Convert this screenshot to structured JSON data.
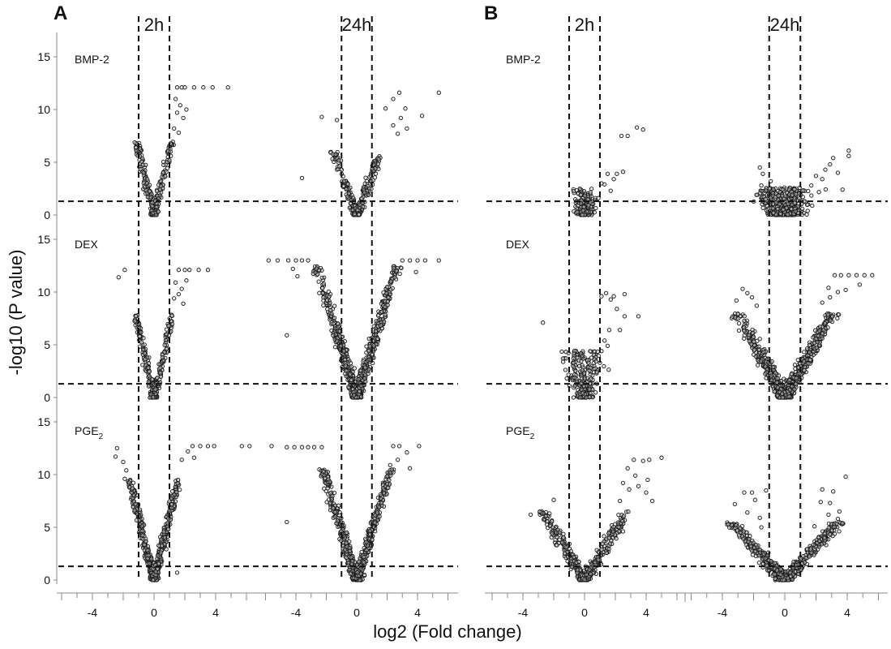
{
  "chart_data": {
    "type": "scatter",
    "xlabel": "log2 (Fold change)",
    "ylabel": "-log10 (P value)",
    "x_ticks": [
      -4,
      0,
      4
    ],
    "y_ticks": [
      0,
      5,
      10,
      15
    ],
    "ylim": [
      0,
      15
    ],
    "fold_change_cutoff": [
      -1,
      1
    ],
    "pvalue_cutoff": 1.3,
    "panels": [
      {
        "letter": "A",
        "times": [
          "2h",
          "24h"
        ],
        "xlim": [
          -6,
          6
        ]
      },
      {
        "letter": "B",
        "times": [
          "2h",
          "24h"
        ],
        "xlim": [
          -6,
          6
        ]
      }
    ],
    "treatments": [
      {
        "label": "BMP-2",
        "sub": ""
      },
      {
        "label": "DEX",
        "sub": ""
      },
      {
        "label": "PGE",
        "sub": "2"
      }
    ],
    "subplots": [
      {
        "panel": "A",
        "time": "2h",
        "treatment": "BMP-2",
        "density": 1.0,
        "ymax_cluster": 7.0,
        "spread": 0.25,
        "slope": 6.0,
        "outliers": [
          [
            1.5,
            12.1
          ],
          [
            1.8,
            12.1
          ],
          [
            2.0,
            12.1
          ],
          [
            2.6,
            12.1
          ],
          [
            3.2,
            12.1
          ],
          [
            3.8,
            12.1
          ],
          [
            4.8,
            12.1
          ],
          [
            1.4,
            11.0
          ],
          [
            1.7,
            10.4
          ],
          [
            2.1,
            10.0
          ],
          [
            1.5,
            9.7
          ],
          [
            1.9,
            9.2
          ],
          [
            1.3,
            8.2
          ],
          [
            1.6,
            7.8
          ]
        ]
      },
      {
        "panel": "A",
        "time": "24h",
        "treatment": "BMP-2",
        "density": 1.0,
        "ymax_cluster": 6.0,
        "spread": 0.45,
        "slope": 3.8,
        "outliers": [
          [
            5.4,
            11.6
          ],
          [
            2.8,
            11.6
          ],
          [
            2.4,
            11.0
          ],
          [
            3.2,
            10.1
          ],
          [
            4.3,
            9.4
          ],
          [
            2.9,
            9.2
          ],
          [
            1.9,
            10.1
          ],
          [
            -1.3,
            9.0
          ],
          [
            -2.3,
            9.3
          ],
          [
            -3.6,
            3.5
          ],
          [
            2.4,
            8.5
          ],
          [
            2.7,
            7.7
          ],
          [
            3.3,
            8.2
          ]
        ]
      },
      {
        "panel": "A",
        "time": "2h",
        "treatment": "DEX",
        "density": 1.0,
        "ymax_cluster": 8.0,
        "spread": 0.25,
        "slope": 6.5,
        "outliers": [
          [
            -2.3,
            11.4
          ],
          [
            -1.9,
            12.1
          ],
          [
            1.6,
            12.1
          ],
          [
            2.0,
            12.1
          ],
          [
            2.3,
            12.1
          ],
          [
            2.9,
            12.1
          ],
          [
            3.5,
            12.1
          ],
          [
            1.4,
            10.9
          ],
          [
            1.8,
            10.3
          ],
          [
            1.6,
            9.8
          ],
          [
            2.1,
            11.1
          ],
          [
            1.3,
            9.4
          ],
          [
            1.9,
            8.9
          ]
        ]
      },
      {
        "panel": "A",
        "time": "24h",
        "treatment": "DEX",
        "density": 2.6,
        "ymax_cluster": 12.5,
        "spread": 0.55,
        "slope": 4.7,
        "outliers": [
          [
            -5.8,
            13.0
          ],
          [
            -5.2,
            13.0
          ],
          [
            -4.5,
            13.0
          ],
          [
            -4.0,
            13.0
          ],
          [
            -3.6,
            13.0
          ],
          [
            -3.2,
            13.0
          ],
          [
            -4.6,
            5.9
          ],
          [
            3.0,
            13.0
          ],
          [
            3.5,
            13.0
          ],
          [
            4.0,
            13.0
          ],
          [
            4.5,
            13.0
          ],
          [
            5.4,
            13.0
          ],
          [
            -4.2,
            12.2
          ],
          [
            -3.9,
            11.5
          ],
          [
            3.9,
            11.9
          ]
        ]
      },
      {
        "panel": "A",
        "time": "2h",
        "treatment": "PGE2",
        "density": 2.1,
        "ymax_cluster": 9.5,
        "spread": 0.3,
        "slope": 6.0,
        "outliers": [
          [
            -2.4,
            12.5
          ],
          [
            -2.5,
            11.7
          ],
          [
            -2.0,
            11.2
          ],
          [
            -1.8,
            10.4
          ],
          [
            -1.9,
            9.6
          ],
          [
            2.5,
            12.7
          ],
          [
            3.0,
            12.7
          ],
          [
            3.5,
            12.7
          ],
          [
            3.9,
            12.7
          ],
          [
            6.2,
            12.7
          ],
          [
            5.7,
            12.7
          ],
          [
            2.2,
            12.2
          ],
          [
            2.6,
            11.6
          ],
          [
            1.8,
            11.4
          ],
          [
            1.5,
            0.7
          ],
          [
            -1.4,
            8.7
          ]
        ]
      },
      {
        "panel": "A",
        "time": "24h",
        "treatment": "PGE2",
        "density": 2.4,
        "ymax_cluster": 10.5,
        "spread": 0.5,
        "slope": 4.7,
        "outliers": [
          [
            -4.6,
            12.6
          ],
          [
            -4.1,
            12.6
          ],
          [
            -3.6,
            12.6
          ],
          [
            -3.2,
            12.6
          ],
          [
            -2.8,
            12.6
          ],
          [
            -2.3,
            12.6
          ],
          [
            -5.6,
            12.7
          ],
          [
            -4.6,
            5.5
          ],
          [
            2.4,
            12.7
          ],
          [
            2.8,
            12.7
          ],
          [
            4.1,
            12.7
          ],
          [
            3.3,
            12.1
          ],
          [
            2.7,
            11.4
          ],
          [
            2.2,
            10.9
          ],
          [
            3.5,
            10.6
          ]
        ]
      },
      {
        "panel": "B",
        "time": "2h",
        "treatment": "BMP-2",
        "density": 0.6,
        "ymax_cluster": 2.5,
        "spread": 0.5,
        "slope": 0,
        "outliers": [
          [
            1.5,
            3.9
          ],
          [
            1.9,
            3.4
          ],
          [
            2.1,
            3.9
          ],
          [
            2.5,
            4.1
          ],
          [
            1.3,
            2.9
          ],
          [
            2.4,
            7.5
          ],
          [
            2.8,
            7.5
          ],
          [
            3.4,
            8.3
          ],
          [
            3.8,
            8.1
          ],
          [
            1.7,
            2.3
          ],
          [
            1.1,
            3.0
          ],
          [
            0.9,
            1.6
          ]
        ]
      },
      {
        "panel": "B",
        "time": "24h",
        "treatment": "BMP-2",
        "density": 1.5,
        "ymax_cluster": 2.6,
        "spread": 1.0,
        "slope": 0,
        "outliers": [
          [
            4.1,
            6.1
          ],
          [
            4.1,
            5.6
          ],
          [
            3.1,
            5.4
          ],
          [
            2.9,
            4.8
          ],
          [
            2.6,
            4.3
          ],
          [
            3.4,
            4.0
          ],
          [
            -1.6,
            4.5
          ],
          [
            -1.4,
            3.9
          ],
          [
            2.0,
            3.7
          ],
          [
            2.4,
            3.4
          ],
          [
            3.7,
            2.4
          ],
          [
            -1.5,
            2.8
          ],
          [
            -0.9,
            3.2
          ],
          [
            1.7,
            2.8
          ]
        ]
      },
      {
        "panel": "B",
        "time": "2h",
        "treatment": "DEX",
        "density": 0.9,
        "ymax_cluster": 4.5,
        "spread": 0.6,
        "slope": 0,
        "outliers": [
          [
            1.1,
            9.6
          ],
          [
            1.4,
            9.9
          ],
          [
            1.9,
            9.6
          ],
          [
            1.7,
            9.3
          ],
          [
            2.6,
            9.8
          ],
          [
            2.1,
            8.4
          ],
          [
            2.6,
            7.7
          ],
          [
            3.5,
            7.7
          ],
          [
            -2.7,
            7.1
          ],
          [
            1.6,
            6.4
          ],
          [
            2.3,
            6.4
          ],
          [
            1.3,
            5.4
          ],
          [
            1.5,
            4.9
          ],
          [
            1.1,
            4.4
          ],
          [
            -1.4,
            3.7
          ],
          [
            1.0,
            3.3
          ],
          [
            0.8,
            2.4
          ]
        ]
      },
      {
        "panel": "B",
        "time": "24h",
        "treatment": "DEX",
        "density": 2.6,
        "ymax_cluster": 8.0,
        "spread": 0.9,
        "slope": 2.6,
        "outliers": [
          [
            3.2,
            11.6
          ],
          [
            3.6,
            11.6
          ],
          [
            4.1,
            11.6
          ],
          [
            4.6,
            11.6
          ],
          [
            5.1,
            11.6
          ],
          [
            5.6,
            11.6
          ],
          [
            4.8,
            10.7
          ],
          [
            3.9,
            10.2
          ],
          [
            -2.7,
            10.3
          ],
          [
            -2.4,
            9.9
          ],
          [
            -2.1,
            9.5
          ],
          [
            2.8,
            10.4
          ],
          [
            3.4,
            10.0
          ],
          [
            2.9,
            9.5
          ],
          [
            2.4,
            9.0
          ],
          [
            -1.8,
            8.7
          ],
          [
            -3.1,
            9.2
          ]
        ]
      },
      {
        "panel": "B",
        "time": "2h",
        "treatment": "PGE2",
        "density": 1.6,
        "ymax_cluster": 6.5,
        "spread": 0.8,
        "slope": 2.4,
        "outliers": [
          [
            -2.0,
            7.6
          ],
          [
            -2.9,
            6.5
          ],
          [
            -3.5,
            6.2
          ],
          [
            3.2,
            11.4
          ],
          [
            3.8,
            11.3
          ],
          [
            4.2,
            11.4
          ],
          [
            5.0,
            11.6
          ],
          [
            2.8,
            10.6
          ],
          [
            3.3,
            9.9
          ],
          [
            4.1,
            9.5
          ],
          [
            2.5,
            9.2
          ],
          [
            2.9,
            8.6
          ],
          [
            3.5,
            8.9
          ],
          [
            4.0,
            8.3
          ],
          [
            2.3,
            7.5
          ],
          [
            4.4,
            7.5
          ],
          [
            -1.6,
            4.5
          ],
          [
            -2.1,
            4.4
          ],
          [
            -1.8,
            3.3
          ]
        ]
      },
      {
        "panel": "B",
        "time": "24h",
        "treatment": "PGE2",
        "density": 2.2,
        "ymax_cluster": 5.5,
        "spread": 1.0,
        "slope": 1.6,
        "outliers": [
          [
            3.9,
            9.8
          ],
          [
            2.4,
            8.6
          ],
          [
            -2.6,
            8.3
          ],
          [
            -2.1,
            8.3
          ],
          [
            -1.2,
            8.5
          ],
          [
            -3.2,
            7.2
          ],
          [
            3.1,
            8.4
          ],
          [
            2.3,
            7.4
          ],
          [
            2.9,
            7.3
          ],
          [
            3.5,
            6.5
          ],
          [
            2.8,
            6.2
          ],
          [
            3.4,
            5.8
          ],
          [
            -1.9,
            7.6
          ],
          [
            -2.4,
            6.4
          ],
          [
            -1.6,
            5.9
          ],
          [
            3.7,
            5.4
          ],
          [
            1.9,
            5.1
          ],
          [
            -1.5,
            5.0
          ]
        ]
      }
    ]
  }
}
